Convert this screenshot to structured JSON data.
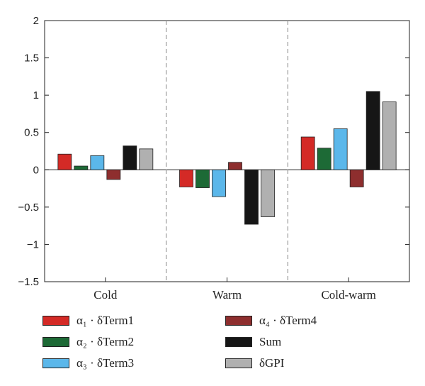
{
  "chart_data": {
    "type": "bar",
    "categories": [
      "Cold",
      "Warm",
      "Cold-warm"
    ],
    "series": [
      {
        "name": "α₁ · δTerm1",
        "color": "#d42a26",
        "values": [
          0.21,
          -0.23,
          0.44
        ]
      },
      {
        "name": "α₂ · δTerm2",
        "color": "#1d6a36",
        "values": [
          0.05,
          -0.24,
          0.29
        ]
      },
      {
        "name": "α₃ · δTerm3",
        "color": "#5bb7ea",
        "values": [
          0.19,
          -0.36,
          0.55
        ]
      },
      {
        "name": "α₄ · δTerm4",
        "color": "#8e2e2e",
        "values": [
          -0.13,
          0.1,
          -0.23
        ]
      },
      {
        "name": "Sum",
        "color": "#161616",
        "values": [
          0.32,
          -0.73,
          1.05
        ]
      },
      {
        "name": "δGPI",
        "color": "#b0b0b0",
        "values": [
          0.28,
          -0.63,
          0.91
        ]
      }
    ],
    "ylim": [
      -1.5,
      2
    ],
    "yticks": [
      "2",
      "1.5",
      "1",
      "0.5",
      "0",
      "−0.5",
      "−1",
      "−1.5"
    ],
    "xlabel": "",
    "ylabel": "",
    "grid": false,
    "separators": "dashed",
    "legend_position": "bottom"
  }
}
